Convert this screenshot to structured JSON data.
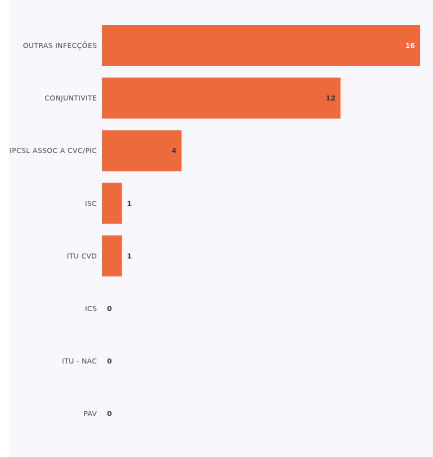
{
  "chart_data": {
    "type": "bar",
    "orientation": "horizontal",
    "categories": [
      "OUTRAS INFECÇÕES",
      "CONJUNTIVITE",
      "IPCSL ASSOC A CVC/PIC",
      "ISC",
      "ITU CVD",
      "ICS",
      "ITU - NAC",
      "PAV"
    ],
    "values": [
      16,
      12,
      4,
      1,
      1,
      0,
      0,
      0
    ],
    "xlim": [
      0,
      16
    ],
    "grid": false,
    "legend": "none",
    "bar_color": "#ec6a3b",
    "title": "",
    "xlabel": "",
    "ylabel": ""
  }
}
